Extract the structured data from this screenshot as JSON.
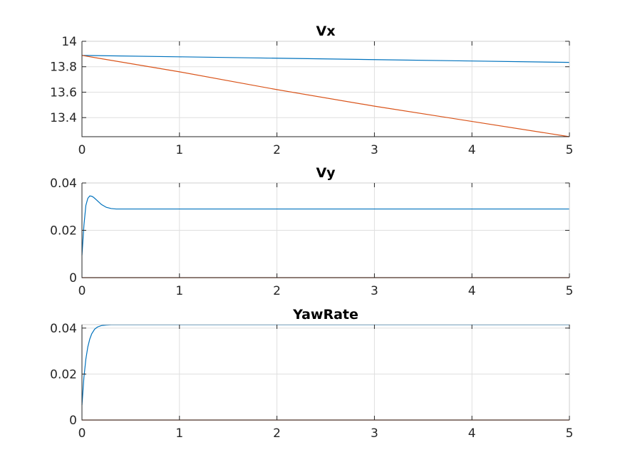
{
  "chart_data": [
    {
      "type": "line",
      "title": "Vx",
      "xlim": [
        0,
        5
      ],
      "ylim": [
        13.25,
        14
      ],
      "xticks": [
        "0",
        "1",
        "2",
        "3",
        "4",
        "5"
      ],
      "yticks": [
        "13.4",
        "13.6",
        "13.8",
        "14"
      ],
      "grid": true,
      "series": [
        {
          "color": "#0072BD",
          "x": [
            0,
            1,
            2,
            3,
            4,
            5
          ],
          "y": [
            13.889,
            13.878,
            13.867,
            13.856,
            13.845,
            13.834
          ]
        },
        {
          "color": "#D95319",
          "x": [
            0,
            1,
            2,
            3,
            4,
            5
          ],
          "y": [
            13.889,
            13.76,
            13.62,
            13.49,
            13.37,
            13.25
          ]
        }
      ]
    },
    {
      "type": "line",
      "title": "Vy",
      "xlim": [
        0,
        5
      ],
      "ylim": [
        0,
        0.04
      ],
      "xticks": [
        "0",
        "1",
        "2",
        "3",
        "4",
        "5"
      ],
      "yticks": [
        "0",
        "0.02",
        "0.04"
      ],
      "grid": true,
      "series": [
        {
          "color": "#0072BD",
          "x": [
            0,
            0.02,
            0.04,
            0.06,
            0.08,
            0.1,
            0.12,
            0.15,
            0.2,
            0.25,
            0.3,
            0.35,
            0.4,
            0.5,
            1,
            2,
            3,
            4,
            5
          ],
          "y": [
            0.0095,
            0.022,
            0.0305,
            0.0335,
            0.0345,
            0.0344,
            0.0339,
            0.0328,
            0.0309,
            0.0297,
            0.0292,
            0.029,
            0.029,
            0.029,
            0.029,
            0.029,
            0.029,
            0.029,
            0.029
          ]
        },
        {
          "color": "#D95319",
          "x": [
            0,
            5
          ],
          "y": [
            0,
            0
          ]
        }
      ]
    },
    {
      "type": "line",
      "title": "YawRate",
      "xlim": [
        0,
        5
      ],
      "ylim": [
        0,
        0.0415
      ],
      "xticks": [
        "0",
        "1",
        "2",
        "3",
        "4",
        "5"
      ],
      "yticks": [
        "0",
        "0.02",
        "0.04"
      ],
      "grid": true,
      "series": [
        {
          "color": "#0072BD",
          "x": [
            0,
            0.02,
            0.04,
            0.06,
            0.08,
            0.1,
            0.13,
            0.16,
            0.2,
            0.25,
            0.3,
            0.35,
            0.4,
            0.5,
            1,
            2,
            3,
            4,
            5
          ],
          "y": [
            0.0065,
            0.0185,
            0.0265,
            0.0318,
            0.0352,
            0.0375,
            0.0395,
            0.0405,
            0.0411,
            0.0413,
            0.0414,
            0.0414,
            0.0414,
            0.0414,
            0.0414,
            0.0414,
            0.0414,
            0.0414,
            0.0414
          ]
        },
        {
          "color": "#D95319",
          "x": [
            0,
            5
          ],
          "y": [
            0,
            0
          ]
        }
      ]
    }
  ]
}
